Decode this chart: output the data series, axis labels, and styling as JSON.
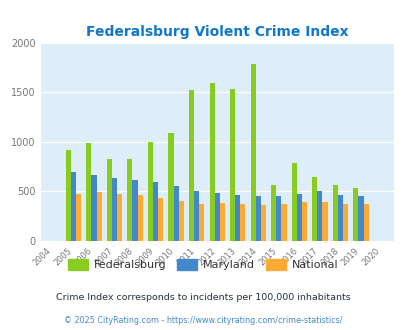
{
  "title": "Federalsburg Violent Crime Index",
  "years": [
    2004,
    2005,
    2006,
    2007,
    2008,
    2009,
    2010,
    2011,
    2012,
    2013,
    2014,
    2015,
    2016,
    2017,
    2018,
    2019,
    2020
  ],
  "federalsburg": [
    0,
    920,
    985,
    830,
    830,
    1000,
    1090,
    1520,
    1590,
    1530,
    1785,
    560,
    790,
    650,
    560,
    530,
    0
  ],
  "maryland": [
    0,
    700,
    665,
    635,
    615,
    590,
    555,
    500,
    485,
    465,
    455,
    455,
    475,
    500,
    460,
    450,
    0
  ],
  "national": [
    0,
    470,
    490,
    470,
    460,
    435,
    400,
    375,
    380,
    370,
    365,
    375,
    395,
    390,
    370,
    370,
    0
  ],
  "bar_colors": {
    "federalsburg": "#88cc22",
    "maryland": "#4488cc",
    "national": "#ffaa33"
  },
  "ylim": [
    0,
    2000
  ],
  "yticks": [
    0,
    500,
    1000,
    1500,
    2000
  ],
  "bg_color": "#ddeef8",
  "title_color": "#1177cc",
  "axis_label_color": "#777777",
  "legend_labels": [
    "Federalsburg",
    "Maryland",
    "National"
  ],
  "footnote1": "Crime Index corresponds to incidents per 100,000 inhabitants",
  "footnote2": "© 2025 CityRating.com - https://www.cityrating.com/crime-statistics/",
  "footnote1_color": "#223344",
  "footnote2_color": "#4488cc",
  "bar_width": 0.25
}
